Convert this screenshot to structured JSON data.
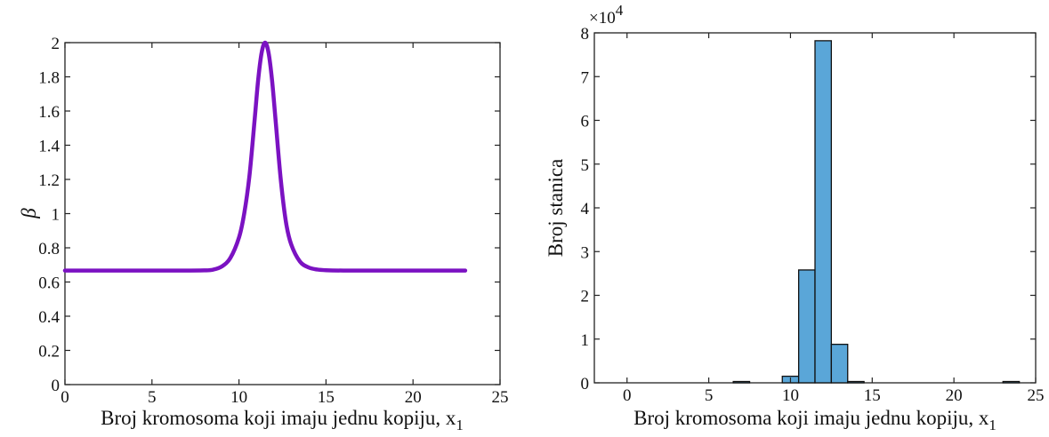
{
  "chart_data": [
    {
      "type": "line",
      "xlabel": "Broj kromosoma koji imaju jednu kopiju, x",
      "xlabel_subscript": "1",
      "ylabel": "β",
      "xlim": [
        0,
        25
      ],
      "ylim": [
        0,
        2
      ],
      "xticks": [
        "0",
        "5",
        "10",
        "15",
        "20",
        "25"
      ],
      "yticks": [
        "0",
        "0.2",
        "0.4",
        "0.6",
        "0.8",
        "1",
        "1.2",
        "1.4",
        "1.6",
        "1.8",
        "2"
      ],
      "grid": false,
      "color": "#7b12c2",
      "series": [
        {
          "x": [
            0,
            2,
            4,
            6,
            7,
            8,
            8.5,
            9,
            9.5,
            10,
            10.3,
            10.6,
            10.9,
            11.1,
            11.3,
            11.5,
            11.7,
            11.9,
            12.1,
            12.4,
            12.7,
            13,
            13.5,
            14,
            14.5,
            15,
            16,
            18,
            20,
            23
          ],
          "y": [
            0.667,
            0.667,
            0.667,
            0.667,
            0.667,
            0.668,
            0.672,
            0.69,
            0.74,
            0.86,
            1.0,
            1.22,
            1.55,
            1.78,
            1.94,
            2.0,
            1.94,
            1.78,
            1.55,
            1.2,
            0.95,
            0.82,
            0.72,
            0.685,
            0.673,
            0.669,
            0.667,
            0.667,
            0.667,
            0.667
          ]
        }
      ]
    },
    {
      "type": "bar",
      "xlabel": "Broj kromosoma koji imaju jednu kopiju, x",
      "xlabel_subscript": "1",
      "ylabel": "Broj stanica",
      "exponent_label": "×10",
      "exponent_power": "4",
      "xlim": [
        -2,
        25
      ],
      "ylim": [
        0,
        8
      ],
      "xticks": [
        "0",
        "5",
        "10",
        "15",
        "20",
        "25"
      ],
      "yticks": [
        "0",
        "1",
        "2",
        "3",
        "4",
        "5",
        "6",
        "7",
        "8"
      ],
      "grid": false,
      "color": "#5aa6d8",
      "bin_width": 1,
      "bins": [
        {
          "x": 7,
          "value": 0.03
        },
        {
          "x": 10,
          "value": 0.15
        },
        {
          "x": 11,
          "value": 2.58
        },
        {
          "x": 12,
          "value": 7.82
        },
        {
          "x": 13,
          "value": 0.88
        },
        {
          "x": 14,
          "value": 0.03
        },
        {
          "x": 23.5,
          "value": 0.03
        }
      ]
    }
  ]
}
